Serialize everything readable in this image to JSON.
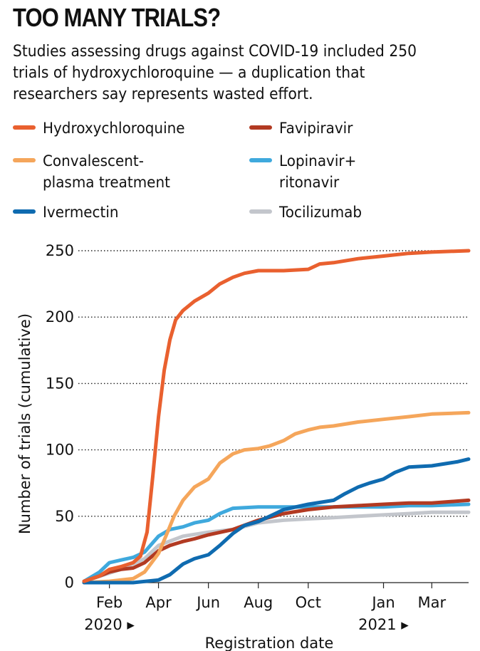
{
  "title": "TOO MANY TRIALS?",
  "subtitle": "Studies assessing drugs against COVID-19 included 250 trials of hydroxychloroquine — a duplication that researchers say represents wasted effort.",
  "legend": [
    {
      "label": "Hydroxychloroquine",
      "color": "#e9602f"
    },
    {
      "label": "Favipiravir",
      "color": "#b23a22"
    },
    {
      "label": "Convalescent-\nplasma treatment",
      "color": "#f5a65b"
    },
    {
      "label": "Lopinavir+\nritonavir",
      "color": "#3fa9dd"
    },
    {
      "label": "Ivermectin",
      "color": "#0f6bb0"
    },
    {
      "label": "Tocilizumab",
      "color": "#c3c6cc"
    }
  ],
  "chart_data": {
    "type": "line",
    "title": "TOO MANY TRIALS?",
    "xlabel": "Registration date",
    "ylabel": "Number of trials (cumulative)",
    "xlim": [
      "2020-01-01",
      "2021-04-15"
    ],
    "ylim": [
      0,
      250
    ],
    "yticks": [
      0,
      50,
      100,
      150,
      200,
      250
    ],
    "xticks": [
      {
        "date": "2020-02-01",
        "label": "Feb"
      },
      {
        "date": "2020-04-01",
        "label": "Apr"
      },
      {
        "date": "2020-06-01",
        "label": "Jun"
      },
      {
        "date": "2020-08-01",
        "label": "Aug"
      },
      {
        "date": "2020-10-01",
        "label": "Oct"
      },
      {
        "date": "2021-01-01",
        "label": "Jan"
      },
      {
        "date": "2021-03-01",
        "label": "Mar"
      }
    ],
    "year_labels": [
      {
        "date": "2020-02-01",
        "label": "2020 ▸"
      },
      {
        "date": "2021-01-01",
        "label": "2021 ▸"
      }
    ],
    "grid": "horizontal dotted",
    "legend_position": "top",
    "series": [
      {
        "name": "Tocilizumab",
        "color": "#c3c6cc",
        "x": [
          "2020-01-01",
          "2020-02-15",
          "2020-03-15",
          "2020-04-01",
          "2020-05-01",
          "2020-06-01",
          "2020-07-01",
          "2020-08-01",
          "2020-09-01",
          "2020-10-01",
          "2020-11-01",
          "2020-12-01",
          "2021-01-01",
          "2021-02-01",
          "2021-03-01",
          "2021-04-15"
        ],
        "y": [
          1,
          10,
          18,
          28,
          35,
          38,
          40,
          45,
          47,
          48,
          49,
          50,
          51,
          52,
          53,
          53
        ]
      },
      {
        "name": "Lopinavir+ritonavir",
        "color": "#3fa9dd",
        "x": [
          "2020-01-01",
          "2020-01-20",
          "2020-02-01",
          "2020-02-15",
          "2020-03-01",
          "2020-03-15",
          "2020-04-01",
          "2020-04-15",
          "2020-05-01",
          "2020-05-15",
          "2020-06-01",
          "2020-06-15",
          "2020-07-01",
          "2020-08-01",
          "2020-09-01",
          "2020-10-01",
          "2020-11-01",
          "2020-12-01",
          "2021-01-01",
          "2021-02-01",
          "2021-03-01",
          "2021-04-15"
        ],
        "y": [
          1,
          8,
          15,
          17,
          19,
          23,
          35,
          40,
          42,
          45,
          47,
          52,
          56,
          57,
          57,
          57,
          57,
          57,
          57,
          58,
          58,
          59
        ]
      },
      {
        "name": "Favipiravir",
        "color": "#b23a22",
        "x": [
          "2020-01-01",
          "2020-01-20",
          "2020-02-01",
          "2020-02-15",
          "2020-03-01",
          "2020-03-15",
          "2020-04-01",
          "2020-04-15",
          "2020-05-01",
          "2020-05-15",
          "2020-06-01",
          "2020-07-01",
          "2020-08-01",
          "2020-09-01",
          "2020-10-01",
          "2020-11-01",
          "2020-12-01",
          "2021-01-01",
          "2021-02-01",
          "2021-03-01",
          "2021-04-15"
        ],
        "y": [
          1,
          5,
          8,
          10,
          11,
          15,
          24,
          28,
          31,
          33,
          36,
          40,
          47,
          52,
          55,
          57,
          58,
          59,
          60,
          60,
          62
        ]
      },
      {
        "name": "Convalescent-plasma treatment",
        "color": "#f5a65b",
        "x": [
          "2020-01-01",
          "2020-02-01",
          "2020-03-01",
          "2020-03-15",
          "2020-04-01",
          "2020-04-10",
          "2020-04-20",
          "2020-05-01",
          "2020-05-15",
          "2020-06-01",
          "2020-06-15",
          "2020-07-01",
          "2020-07-15",
          "2020-08-01",
          "2020-08-15",
          "2020-09-01",
          "2020-09-15",
          "2020-10-01",
          "2020-10-15",
          "2020-11-01",
          "2020-12-01",
          "2021-01-01",
          "2021-02-01",
          "2021-03-01",
          "2021-04-15"
        ],
        "y": [
          0,
          1,
          3,
          8,
          22,
          35,
          50,
          62,
          72,
          78,
          90,
          97,
          100,
          101,
          103,
          107,
          112,
          115,
          117,
          118,
          121,
          123,
          125,
          127,
          128
        ]
      },
      {
        "name": "Ivermectin",
        "color": "#0f6bb0",
        "x": [
          "2020-01-01",
          "2020-03-01",
          "2020-04-01",
          "2020-04-15",
          "2020-05-01",
          "2020-05-15",
          "2020-06-01",
          "2020-06-15",
          "2020-07-01",
          "2020-07-15",
          "2020-08-01",
          "2020-08-15",
          "2020-09-01",
          "2020-10-01",
          "2020-11-01",
          "2020-11-15",
          "2020-12-01",
          "2020-12-15",
          "2021-01-01",
          "2021-01-15",
          "2021-02-01",
          "2021-03-01",
          "2021-04-01",
          "2021-04-15"
        ],
        "y": [
          0,
          0,
          2,
          6,
          14,
          18,
          21,
          28,
          37,
          43,
          46,
          50,
          55,
          59,
          62,
          67,
          72,
          75,
          78,
          83,
          87,
          88,
          91,
          93
        ]
      },
      {
        "name": "Hydroxychloroquine",
        "color": "#e9602f",
        "x": [
          "2020-01-01",
          "2020-01-20",
          "2020-02-01",
          "2020-02-15",
          "2020-03-01",
          "2020-03-10",
          "2020-03-18",
          "2020-03-25",
          "2020-04-01",
          "2020-04-08",
          "2020-04-15",
          "2020-04-22",
          "2020-05-01",
          "2020-05-15",
          "2020-06-01",
          "2020-06-15",
          "2020-07-01",
          "2020-07-15",
          "2020-08-01",
          "2020-09-01",
          "2020-10-01",
          "2020-10-15",
          "2020-11-01",
          "2020-12-01",
          "2021-01-01",
          "2021-02-01",
          "2021-03-01",
          "2021-04-15"
        ],
        "y": [
          1,
          5,
          10,
          12,
          15,
          20,
          38,
          80,
          125,
          160,
          183,
          198,
          205,
          212,
          218,
          225,
          230,
          233,
          235,
          235,
          236,
          240,
          241,
          244,
          246,
          248,
          249,
          250
        ]
      }
    ]
  }
}
